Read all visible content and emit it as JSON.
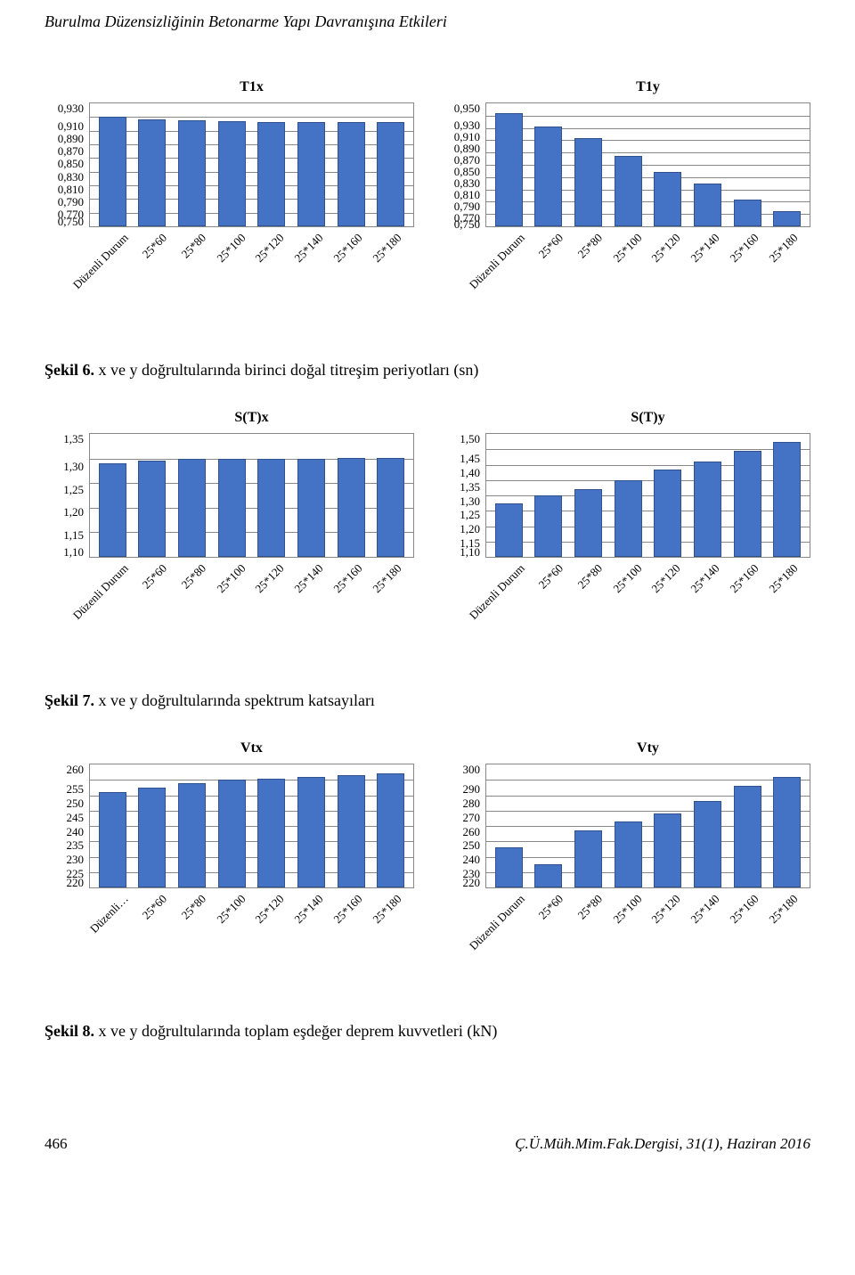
{
  "page": {
    "title": "Burulma Düzensizliğinin Betonarme Yapı Davranışına Etkileri",
    "page_number": "466",
    "journal_ref": "Ç.Ü.Müh.Mim.Fak.Dergisi, 31(1), Haziran 2016"
  },
  "styling": {
    "bar_color": "#4472c4",
    "bar_border": "#2f528f",
    "grid_color": "#888888",
    "background": "#ffffff",
    "font_family": "Times New Roman"
  },
  "captions": {
    "fig6_label": "Şekil 6. ",
    "fig6_text": "x ve y doğrultularında birinci doğal titreşim periyotları (sn)",
    "fig7_label": "Şekil 7. ",
    "fig7_text": "x ve y doğrultularında spektrum katsayıları",
    "fig8_label": "Şekil 8. ",
    "fig8_text": "x ve y doğrultularında toplam eşdeğer deprem kuvvetleri (kN)"
  },
  "x_categories_full": [
    "Düzenli Durum",
    "25*60",
    "25*80",
    "25*100",
    "25*120",
    "25*140",
    "25*160",
    "25*180"
  ],
  "x_categories_short": [
    "Düzenli…",
    "25*60",
    "25*80",
    "25*100",
    "25*120",
    "25*140",
    "25*160",
    "25*180"
  ],
  "charts": {
    "T1x": {
      "title": "T1x",
      "ymin": 0.75,
      "ymax": 0.93,
      "yticks": [
        "0,930",
        "0,910",
        "0,890",
        "0,870",
        "0,850",
        "0,830",
        "0,810",
        "0,790",
        "0,770",
        "0,750"
      ],
      "values": [
        0.91,
        0.907,
        0.905,
        0.904,
        0.903,
        0.903,
        0.902,
        0.902
      ]
    },
    "T1y": {
      "title": "T1y",
      "ymin": 0.75,
      "ymax": 0.95,
      "yticks": [
        "0,950",
        "0,930",
        "0,910",
        "0,890",
        "0,870",
        "0,850",
        "0,830",
        "0,810",
        "0,790",
        "0,770",
        "0,750"
      ],
      "values": [
        0.934,
        0.912,
        0.893,
        0.865,
        0.839,
        0.82,
        0.794,
        0.775
      ]
    },
    "STx": {
      "title": "S(T)x",
      "ymin": 1.1,
      "ymax": 1.35,
      "yticks": [
        "1,35",
        "1,30",
        "1,25",
        "1,20",
        "1,15",
        "1,10"
      ],
      "values": [
        1.29,
        1.295,
        1.3,
        1.3,
        1.3,
        1.3,
        1.302,
        1.302
      ]
    },
    "STy": {
      "title": "S(T)y",
      "ymin": 1.1,
      "ymax": 1.5,
      "yticks": [
        "1,50",
        "1,45",
        "1,40",
        "1,35",
        "1,30",
        "1,25",
        "1,20",
        "1,15",
        "1,10"
      ],
      "values": [
        1.275,
        1.3,
        1.32,
        1.35,
        1.385,
        1.41,
        1.445,
        1.475
      ]
    },
    "Vtx": {
      "title": "Vtx",
      "ymin": 220,
      "ymax": 260,
      "yticks": [
        "260",
        "255",
        "250",
        "245",
        "240",
        "235",
        "230",
        "225",
        "220"
      ],
      "values": [
        251,
        252.5,
        254,
        255,
        255.5,
        256,
        256.5,
        257
      ]
    },
    "Vty": {
      "title": "Vty",
      "ymin": 220,
      "ymax": 300,
      "yticks": [
        "300",
        "290",
        "280",
        "270",
        "260",
        "250",
        "240",
        "230",
        "220"
      ],
      "values": [
        246,
        235,
        257,
        263,
        268,
        276,
        286,
        292
      ]
    }
  }
}
